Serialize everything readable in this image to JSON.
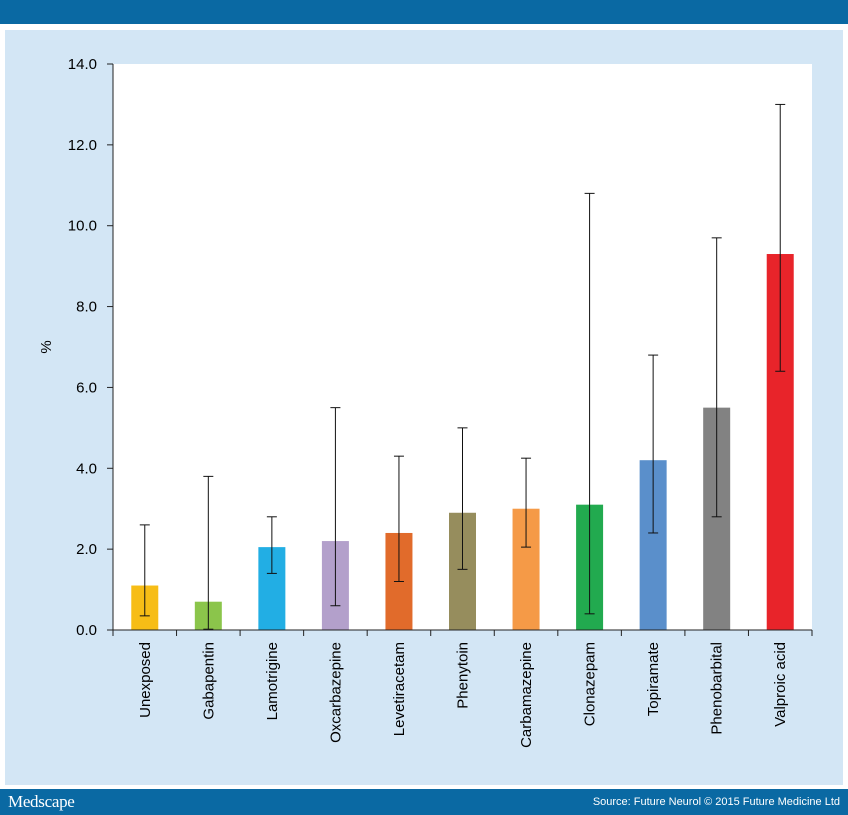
{
  "header": {},
  "footer": {
    "logo_text": "Medscape",
    "source": "Source: Future Neurol © 2015 Future Medicine Ltd"
  },
  "colors": {
    "brand_bar": "#0a69a3",
    "panel_background": "#d3e6f5"
  },
  "chart_data": {
    "type": "bar",
    "title": "",
    "xlabel": "",
    "ylabel": "%",
    "ylim": [
      0,
      14
    ],
    "yticks": [
      "0.0",
      "2.0",
      "4.0",
      "6.0",
      "8.0",
      "10.0",
      "12.0",
      "14.0"
    ],
    "grid": false,
    "legend": "none",
    "error_bars": true,
    "categories": [
      "Unexposed",
      "Gabapentin",
      "Lamotrigine",
      "Oxcarbazepine",
      "Levetiracetam",
      "Phenytoin",
      "Carbamazepine",
      "Clonazepam",
      "Topiramate",
      "Phenobarbital",
      "Valproic acid"
    ],
    "values": [
      1.1,
      0.7,
      2.05,
      2.2,
      2.4,
      2.9,
      3.0,
      3.1,
      4.2,
      5.5,
      9.3
    ],
    "ci_lower": [
      0.35,
      0.02,
      1.4,
      0.6,
      1.2,
      1.5,
      2.05,
      0.4,
      2.4,
      2.8,
      6.4
    ],
    "ci_upper": [
      2.6,
      3.8,
      2.8,
      5.5,
      4.3,
      5.0,
      4.25,
      10.8,
      6.8,
      9.7,
      13.0
    ],
    "bar_colors": [
      "#f7bd16",
      "#8bc54b",
      "#22aee4",
      "#b3a0cb",
      "#e16b2b",
      "#968d5d",
      "#f59a47",
      "#22aa4f",
      "#5a8fcb",
      "#828282",
      "#e8242a"
    ]
  }
}
